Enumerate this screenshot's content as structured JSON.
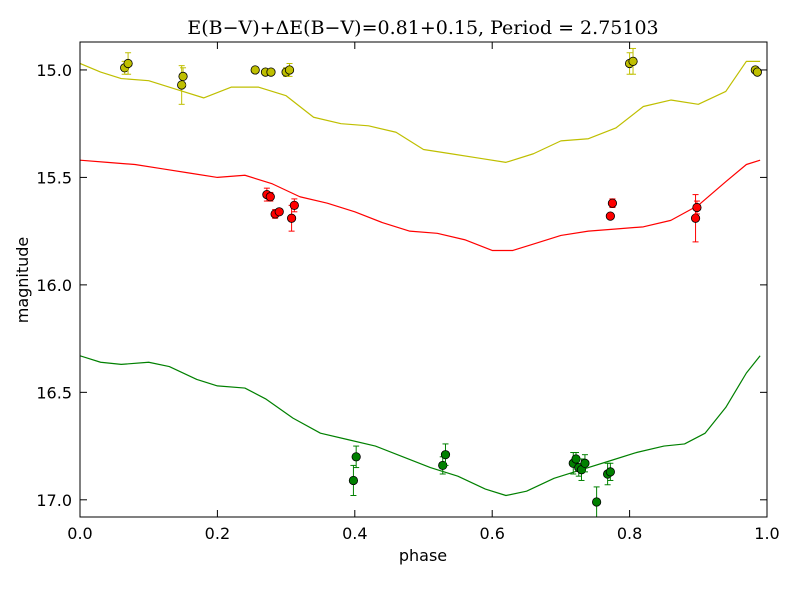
{
  "chart_data": {
    "type": "scatter",
    "title": "E(B−V)+ΔE(B−V)=0.81+0.15, Period = 2.75103",
    "xlabel": "phase",
    "ylabel": "magnitude",
    "xlim": [
      0.0,
      1.0
    ],
    "ylim": [
      17.08,
      14.87
    ],
    "y_inverted": true,
    "x_ticks": [
      0.0,
      0.2,
      0.4,
      0.6,
      0.8,
      1.0
    ],
    "x_tick_labels": [
      "0.0",
      "0.2",
      "0.4",
      "0.6",
      "0.8",
      "1.0"
    ],
    "y_ticks": [
      15.0,
      15.5,
      16.0,
      16.5,
      17.0
    ],
    "y_tick_labels": [
      "15.0",
      "15.5",
      "16.0",
      "16.5",
      "17.0"
    ],
    "grid": false,
    "legend": "none",
    "series": [
      {
        "color": "#bfbf00",
        "marker_face": "#bfbf00",
        "curve": {
          "x": [
            0.0,
            0.03,
            0.06,
            0.1,
            0.14,
            0.18,
            0.22,
            0.26,
            0.3,
            0.34,
            0.38,
            0.42,
            0.46,
            0.5,
            0.54,
            0.58,
            0.62,
            0.66,
            0.7,
            0.74,
            0.78,
            0.82,
            0.86,
            0.9,
            0.94,
            0.97,
            0.99
          ],
          "y": [
            14.97,
            15.01,
            15.04,
            15.05,
            15.09,
            15.13,
            15.08,
            15.08,
            15.12,
            15.22,
            15.25,
            15.26,
            15.29,
            15.37,
            15.39,
            15.41,
            15.43,
            15.39,
            15.33,
            15.32,
            15.27,
            15.17,
            15.14,
            15.16,
            15.1,
            14.96,
            14.96
          ]
        },
        "points": {
          "x": [
            0.065,
            0.07,
            0.148,
            0.15,
            0.255,
            0.27,
            0.278,
            0.3,
            0.305,
            0.8,
            0.805,
            0.983,
            0.986
          ],
          "y": [
            14.99,
            14.97,
            15.07,
            15.03,
            15.0,
            15.01,
            15.01,
            15.01,
            15.0,
            14.97,
            14.96,
            15.0,
            15.01
          ],
          "err": [
            0.03,
            0.05,
            0.09,
            0.04,
            0.01,
            0.01,
            0.01,
            0.02,
            0.03,
            0.05,
            0.06,
            0.01,
            0.01
          ]
        }
      },
      {
        "color": "#ff0000",
        "marker_face": "#ff0000",
        "curve": {
          "x": [
            0.0,
            0.04,
            0.08,
            0.12,
            0.16,
            0.2,
            0.24,
            0.28,
            0.32,
            0.36,
            0.4,
            0.44,
            0.48,
            0.52,
            0.56,
            0.6,
            0.63,
            0.66,
            0.7,
            0.74,
            0.78,
            0.82,
            0.86,
            0.9,
            0.94,
            0.97,
            0.99
          ],
          "y": [
            15.42,
            15.43,
            15.44,
            15.46,
            15.48,
            15.5,
            15.49,
            15.53,
            15.59,
            15.62,
            15.66,
            15.71,
            15.75,
            15.76,
            15.79,
            15.84,
            15.84,
            15.81,
            15.77,
            15.75,
            15.74,
            15.73,
            15.7,
            15.63,
            15.52,
            15.44,
            15.42
          ]
        },
        "points": {
          "x": [
            0.272,
            0.277,
            0.284,
            0.29,
            0.308,
            0.312,
            0.772,
            0.775,
            0.896,
            0.898
          ],
          "y": [
            15.58,
            15.59,
            15.67,
            15.66,
            15.69,
            15.63,
            15.68,
            15.62,
            15.69,
            15.64
          ],
          "err": [
            0.03,
            0.02,
            0.02,
            0.01,
            0.06,
            0.03,
            0.01,
            0.02,
            0.11,
            0.03
          ]
        }
      },
      {
        "color": "#008000",
        "marker_face": "#008000",
        "curve": {
          "x": [
            0.0,
            0.03,
            0.06,
            0.1,
            0.13,
            0.17,
            0.2,
            0.24,
            0.27,
            0.31,
            0.35,
            0.39,
            0.43,
            0.47,
            0.51,
            0.55,
            0.59,
            0.62,
            0.65,
            0.69,
            0.73,
            0.77,
            0.81,
            0.85,
            0.88,
            0.91,
            0.94,
            0.97,
            0.99
          ],
          "y": [
            16.33,
            16.36,
            16.37,
            16.36,
            16.38,
            16.44,
            16.47,
            16.48,
            16.53,
            16.62,
            16.69,
            16.72,
            16.75,
            16.8,
            16.85,
            16.89,
            16.95,
            16.98,
            16.96,
            16.9,
            16.86,
            16.82,
            16.78,
            16.75,
            16.74,
            16.69,
            16.57,
            16.41,
            16.33
          ]
        },
        "points": {
          "x": [
            0.398,
            0.402,
            0.528,
            0.532,
            0.718,
            0.722,
            0.726,
            0.73,
            0.735,
            0.752,
            0.768,
            0.772
          ],
          "y": [
            16.91,
            16.8,
            16.84,
            16.79,
            16.83,
            16.81,
            16.85,
            16.86,
            16.83,
            17.01,
            16.88,
            16.87
          ],
          "err": [
            0.07,
            0.05,
            0.04,
            0.05,
            0.05,
            0.03,
            0.04,
            0.05,
            0.04,
            0.07,
            0.05,
            0.04
          ]
        }
      }
    ]
  }
}
